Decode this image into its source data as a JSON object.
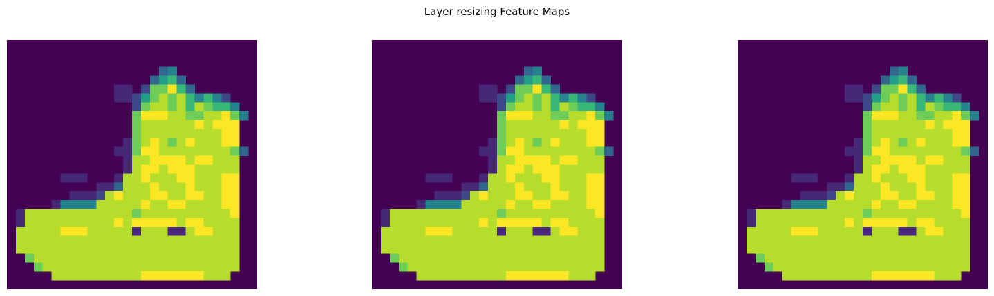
{
  "title": "Layer resizing Feature Maps",
  "chart_data": {
    "type": "heatmap",
    "title": "Layer resizing Feature Maps",
    "colormap": "viridis",
    "value_range": [
      0,
      1
    ],
    "axes_visible": false,
    "num_maps": 3,
    "maps_identical": true,
    "grid_size": [
      28,
      28
    ],
    "background_value": 0.0,
    "pixels": [
      "0000000000000000000000000000",
      "0000000000000000000000000000",
      "0000000000000000000000000000",
      "0000000000000000034000000000",
      "0000000000000000356300000000",
      "0000000000001102779630000000",
      "0000000000001125787864642000",
      "0000000000000027887868766400",
      "0000000000000079998877889740",
      "0000000000000078888889899900",
      "0000000000000078888888889900",
      "0000000000000178987898889900",
      "0000000000001179988888888730",
      "0000000000000188999989988800",
      "0000000000000189989998888800",
      "0000001110001889888998889900",
      "0000000000113888988898889900",
      "0000000111289888998899889900",
      "0000014444888889889988889900",
      "0188888888888878888888888900",
      "0188888888889899999899888800",
      "0888889998888818881189988800",
      "0888888888888888888888888800",
      "0888888888888888888888888800",
      "0078888888888888888888888800",
      "0007888888888888888888888800",
      "0000088888888889999999888000",
      "0000000000000000000000000000"
    ]
  }
}
